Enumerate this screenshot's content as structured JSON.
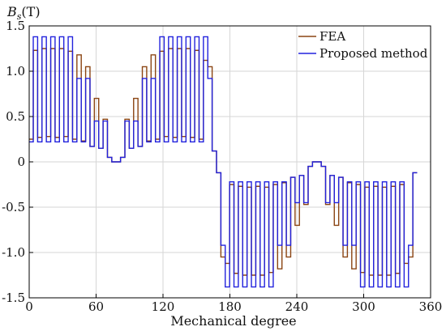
{
  "chart_data": {
    "type": "line",
    "ylabel_main": "B",
    "ylabel_sub": "s",
    "ylabel_unit": "(T)",
    "xlabel": "Mechanical degree",
    "xlim": [
      0,
      360
    ],
    "ylim": [
      -1.5,
      1.5
    ],
    "xticks": [
      "0",
      "60",
      "120",
      "180",
      "240",
      "300",
      "360"
    ],
    "yticks": [
      "1.5",
      "1.0",
      "0.5",
      "0",
      "-0.5",
      "-1.0",
      "-1.5"
    ],
    "grid": true,
    "legend_position": "top-right",
    "period_deg": 180,
    "series": [
      {
        "name": "FEA",
        "color": "#8B4513",
        "step_values": [
          0.12,
          1.05,
          1.12,
          0.25,
          1.23,
          0.27,
          1.25,
          0.28,
          1.25,
          0.27,
          1.25,
          0.28,
          1.22,
          0.25,
          1.18,
          0.23,
          1.05,
          0.17,
          0.7,
          0.15,
          0.47,
          0.05,
          0
        ]
      },
      {
        "name": "Proposed method",
        "color": "#2222DD",
        "step_values": [
          0.12,
          0.92,
          1.38,
          0.22,
          1.38,
          0.22,
          1.38,
          0.22,
          1.38,
          0.22,
          1.38,
          0.22,
          1.38,
          0.22,
          0.92,
          0.22,
          0.92,
          0.17,
          0.45,
          0.15,
          0.45,
          0.05,
          0
        ]
      }
    ]
  }
}
